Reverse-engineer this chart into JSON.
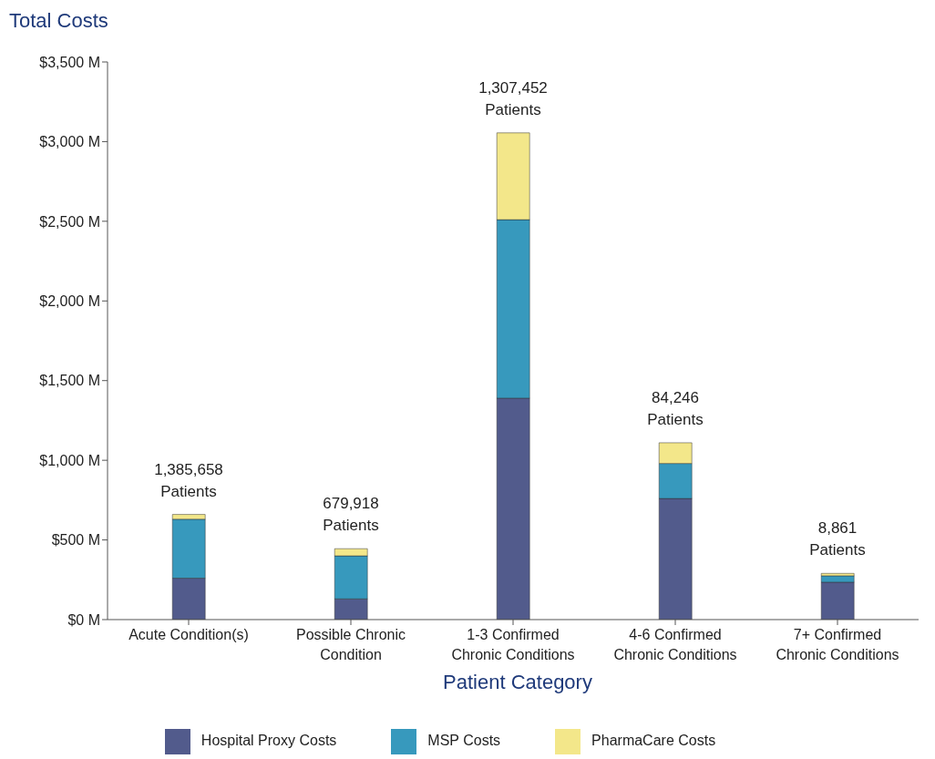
{
  "chart_data": {
    "type": "bar",
    "stacked": true,
    "ylabel": "Total Costs",
    "xlabel": "Patient Category",
    "categories": [
      "Acute Condition(s)",
      "Possible Chronic Condition",
      "1-3 Confirmed Chronic Conditions",
      "4-6 Confirmed Chronic Conditions",
      "7+ Confirmed Chronic Conditions"
    ],
    "series": [
      {
        "name": "Hospital Proxy Costs",
        "color": "#525b8c",
        "values": [
          260,
          130,
          1390,
          760,
          235
        ]
      },
      {
        "name": "MSP Costs",
        "color": "#3799bd",
        "values": [
          370,
          270,
          1120,
          220,
          40
        ]
      },
      {
        "name": "PharmaCare Costs",
        "color": "#f3e78a",
        "values": [
          30,
          45,
          545,
          130,
          15
        ]
      }
    ],
    "ylim": [
      0,
      3500
    ],
    "yticks": [
      {
        "value": 0,
        "label": "$0 M"
      },
      {
        "value": 500,
        "label": "$500 M"
      },
      {
        "value": 1000,
        "label": "$1,000 M"
      },
      {
        "value": 1500,
        "label": "$1,500 M"
      },
      {
        "value": 2000,
        "label": "$2,000 M"
      },
      {
        "value": 2500,
        "label": "$2,500 M"
      },
      {
        "value": 3000,
        "label": "$3,000 M"
      },
      {
        "value": 3500,
        "label": "$3,500 M"
      }
    ],
    "annotations": [
      {
        "text": "1,385,658 Patients",
        "x": "Acute Condition(s)",
        "y": 660
      },
      {
        "text": "679,918 Patients",
        "x": "Possible Chronic Condition",
        "y": 445
      },
      {
        "text": "1,307,452 Patients",
        "x": "1-3 Confirmed Chronic Conditions",
        "y": 3055
      },
      {
        "text": "84,246 Patients",
        "x": "4-6 Confirmed Chronic Conditions",
        "y": 1110
      },
      {
        "text": "8,861 Patients",
        "x": "7+ Confirmed Chronic Conditions",
        "y": 290
      }
    ],
    "grid": false,
    "legend": "bottom"
  }
}
